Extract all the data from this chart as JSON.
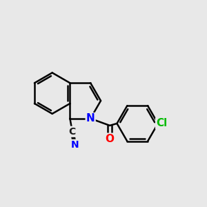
{
  "background_color": "#e8e8e8",
  "bond_color": "#000000",
  "bond_width": 1.8,
  "atom_colors": {
    "N": "#0000ff",
    "O": "#ff0000",
    "Cl": "#00bb00",
    "C": "#1a1a1a"
  },
  "font_size_atoms": 11,
  "font_size_cn": 10,
  "BL": 1.0
}
